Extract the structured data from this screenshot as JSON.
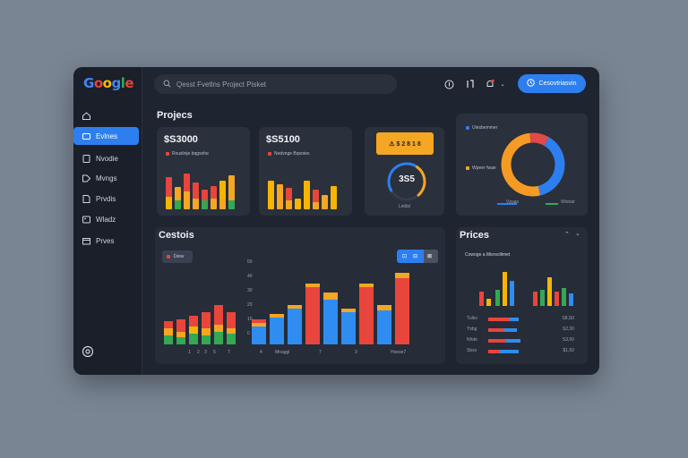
{
  "app": {
    "logo_letters": [
      {
        "ch": "G",
        "color": "#4285F4"
      },
      {
        "ch": "o",
        "color": "#EA4335"
      },
      {
        "ch": "o",
        "color": "#FBBC05"
      },
      {
        "ch": "g",
        "color": "#4285F4"
      },
      {
        "ch": "l",
        "color": "#34A853"
      },
      {
        "ch": "e",
        "color": "#EA4335"
      }
    ]
  },
  "sidebar": {
    "items": [
      {
        "label": "",
        "icon": "home-icon"
      },
      {
        "label": "Evlnes",
        "icon": "folder-icon",
        "active": true
      },
      {
        "label": "Nvodie",
        "icon": "document-icon"
      },
      {
        "label": "Mvngs",
        "icon": "tag-icon"
      },
      {
        "label": "Prvdis",
        "icon": "file-icon"
      },
      {
        "label": "Wladz",
        "icon": "image-icon"
      },
      {
        "label": "Prves",
        "icon": "box-icon"
      }
    ],
    "bottom_icon": "settings-icon"
  },
  "topbar": {
    "search_text": "Qesst Fvetlns Project Pisket",
    "icons": [
      "info-icon",
      "user-icon",
      "bell-icon",
      "chevron-down-icon"
    ],
    "cta_label": "Cesovtriasvin"
  },
  "projects": {
    "title": "Projecs",
    "card1": {
      "value": "$S3000",
      "sub": "Rxuslinje bqgsohe"
    },
    "card2": {
      "value": "$S5100",
      "sub": "Nodvnge Bqsotes"
    },
    "card3": {
      "badge": "⚠ $ 2 8 1 8",
      "gauge_value": "3S5",
      "gauge_label": "Leldsl",
      "gauge_fraction": 0.72
    }
  },
  "donut": {
    "legend": [
      {
        "label": "Ulesbemmer",
        "color": "#2d7ff0"
      },
      {
        "label": "Wpeer fwae",
        "color": "#f5a623"
      }
    ],
    "footer": [
      "Vzuas",
      "Woinar"
    ],
    "segments": [
      {
        "value": 38,
        "color": "#2d7ff0"
      },
      {
        "value": 52,
        "color": "#f59b23"
      },
      {
        "value": 10,
        "color": "#e04a4a"
      }
    ]
  },
  "costs": {
    "title": "Cestois",
    "filter": "Desv",
    "yticks": [
      "50",
      "40",
      "30",
      "20",
      "10",
      "0"
    ],
    "xlabels": [
      "1",
      "2",
      "3",
      "5",
      "7",
      "4",
      "Mnaggl",
      "7",
      "3",
      "Hoese7"
    ]
  },
  "prices": {
    "title": "Prices",
    "subtitle": "Cowoge a Misrsollimet",
    "rows": [
      {
        "label": "Tulko",
        "value": "S8,S0"
      },
      {
        "label": "Ysbg",
        "value": "S2,30"
      },
      {
        "label": "Nhde",
        "value": "S3,90"
      },
      {
        "label": "Sbss",
        "value": "$1,50"
      }
    ]
  },
  "colors": {
    "accent": "#2d7ff0",
    "red": "#e8453c",
    "orange": "#f5a623",
    "green": "#34a853",
    "blue": "#2f8cf0",
    "yellow": "#f7b500"
  }
}
